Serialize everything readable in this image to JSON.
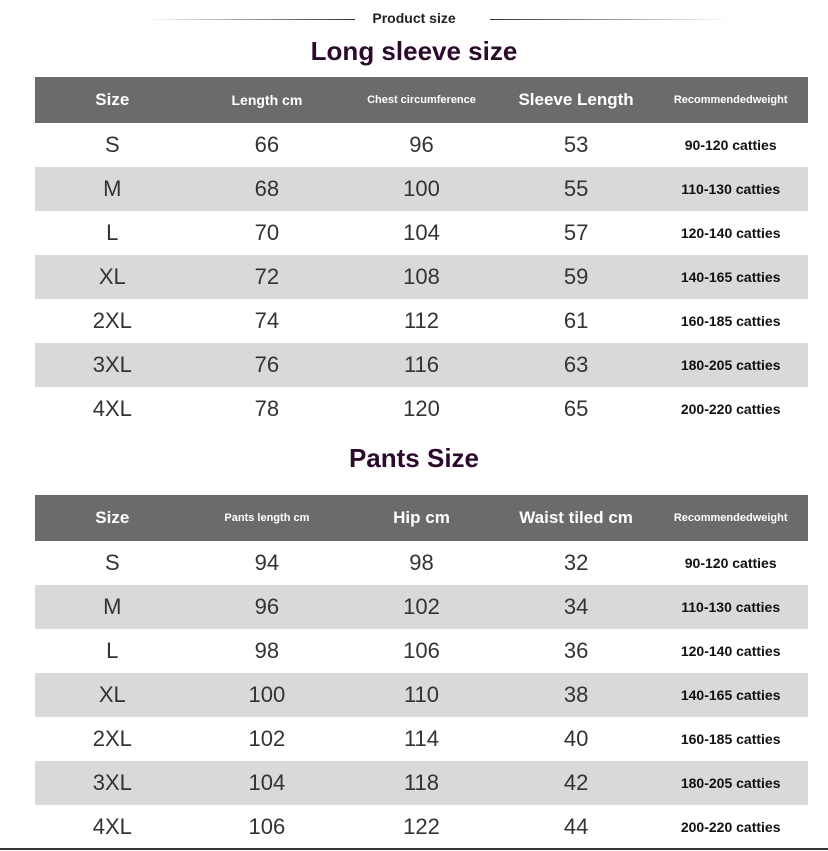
{
  "header": {
    "title": "Product size"
  },
  "long_sleeve": {
    "title": "Long sleeve size",
    "columns": [
      "Size",
      "Length cm",
      "Chest circumference",
      "Sleeve Length",
      "Recommendedweight"
    ],
    "rows": [
      [
        "S",
        "66",
        "96",
        "53",
        "90-120 catties"
      ],
      [
        "M",
        "68",
        "100",
        "55",
        "110-130 catties"
      ],
      [
        "L",
        "70",
        "104",
        "57",
        "120-140 catties"
      ],
      [
        "XL",
        "72",
        "108",
        "59",
        "140-165 catties"
      ],
      [
        "2XL",
        "74",
        "112",
        "61",
        "160-185 catties"
      ],
      [
        "3XL",
        "76",
        "116",
        "63",
        "180-205 catties"
      ],
      [
        "4XL",
        "78",
        "120",
        "65",
        "200-220 catties"
      ]
    ]
  },
  "pants": {
    "title": "Pants Size",
    "columns": [
      "Size",
      "Pants length cm",
      "Hip cm",
      "Waist tiled cm",
      "Recommendedweight"
    ],
    "rows": [
      [
        "S",
        "94",
        "98",
        "32",
        "90-120 catties"
      ],
      [
        "M",
        "96",
        "102",
        "34",
        "110-130 catties"
      ],
      [
        "L",
        "98",
        "106",
        "36",
        "120-140 catties"
      ],
      [
        "XL",
        "100",
        "110",
        "38",
        "140-165 catties"
      ],
      [
        "2XL",
        "102",
        "114",
        "40",
        "160-185 catties"
      ],
      [
        "3XL",
        "104",
        "118",
        "42",
        "180-205 catties"
      ],
      [
        "4XL",
        "106",
        "122",
        "44",
        "200-220 catties"
      ]
    ]
  },
  "colors": {
    "header_bg": "#6b6b6b",
    "stripe": "#d9d9d9",
    "title": "#2c0a2e"
  }
}
